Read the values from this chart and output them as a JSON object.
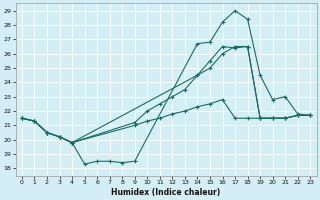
{
  "xlabel": "Humidex (Indice chaleur)",
  "bg_color": "#d4eef5",
  "line_color": "#1a6b60",
  "grid_color": "#ffffff",
  "xlim": [
    -0.5,
    23.5
  ],
  "ylim": [
    17.5,
    29.5
  ],
  "yticks": [
    18,
    19,
    20,
    21,
    22,
    23,
    24,
    25,
    26,
    27,
    28,
    29
  ],
  "xticks": [
    0,
    1,
    2,
    3,
    4,
    5,
    6,
    7,
    8,
    9,
    10,
    11,
    12,
    13,
    14,
    15,
    16,
    17,
    18,
    19,
    20,
    21,
    22,
    23
  ],
  "line1_x": [
    0,
    1,
    2,
    3,
    4,
    5,
    6,
    7,
    8,
    9,
    14,
    15,
    16,
    17,
    18,
    19,
    20,
    21,
    22,
    23
  ],
  "line1_y": [
    21.5,
    21.3,
    20.5,
    20.2,
    19.8,
    18.3,
    18.5,
    18.5,
    18.4,
    18.5,
    26.7,
    26.8,
    28.2,
    29.0,
    28.4,
    24.5,
    22.8,
    23.0,
    21.8,
    21.7
  ],
  "line2_x": [
    0,
    1,
    2,
    3,
    4,
    14,
    15,
    16,
    17,
    18,
    19,
    20,
    21,
    22,
    23
  ],
  "line2_y": [
    21.5,
    21.3,
    20.5,
    20.2,
    19.8,
    24.5,
    25.5,
    26.5,
    26.4,
    26.5,
    21.5,
    21.5,
    21.5,
    21.7,
    21.7
  ],
  "line3_x": [
    0,
    1,
    2,
    3,
    4,
    9,
    10,
    11,
    12,
    13,
    14,
    15,
    16,
    17,
    18,
    19,
    20,
    21,
    22,
    23
  ],
  "line3_y": [
    21.5,
    21.3,
    20.5,
    20.2,
    19.8,
    21.2,
    22.0,
    22.5,
    23.0,
    23.5,
    24.5,
    25.0,
    26.0,
    26.5,
    26.5,
    21.5,
    21.5,
    21.5,
    21.7,
    21.7
  ],
  "line4_x": [
    0,
    1,
    2,
    3,
    4,
    9,
    10,
    11,
    12,
    13,
    14,
    15,
    16,
    17,
    18,
    19,
    20,
    21,
    22,
    23
  ],
  "line4_y": [
    21.5,
    21.3,
    20.5,
    20.2,
    19.8,
    21.0,
    21.3,
    21.5,
    21.8,
    22.0,
    22.3,
    22.5,
    22.8,
    21.5,
    21.5,
    21.5,
    21.5,
    21.5,
    21.7,
    21.7
  ]
}
